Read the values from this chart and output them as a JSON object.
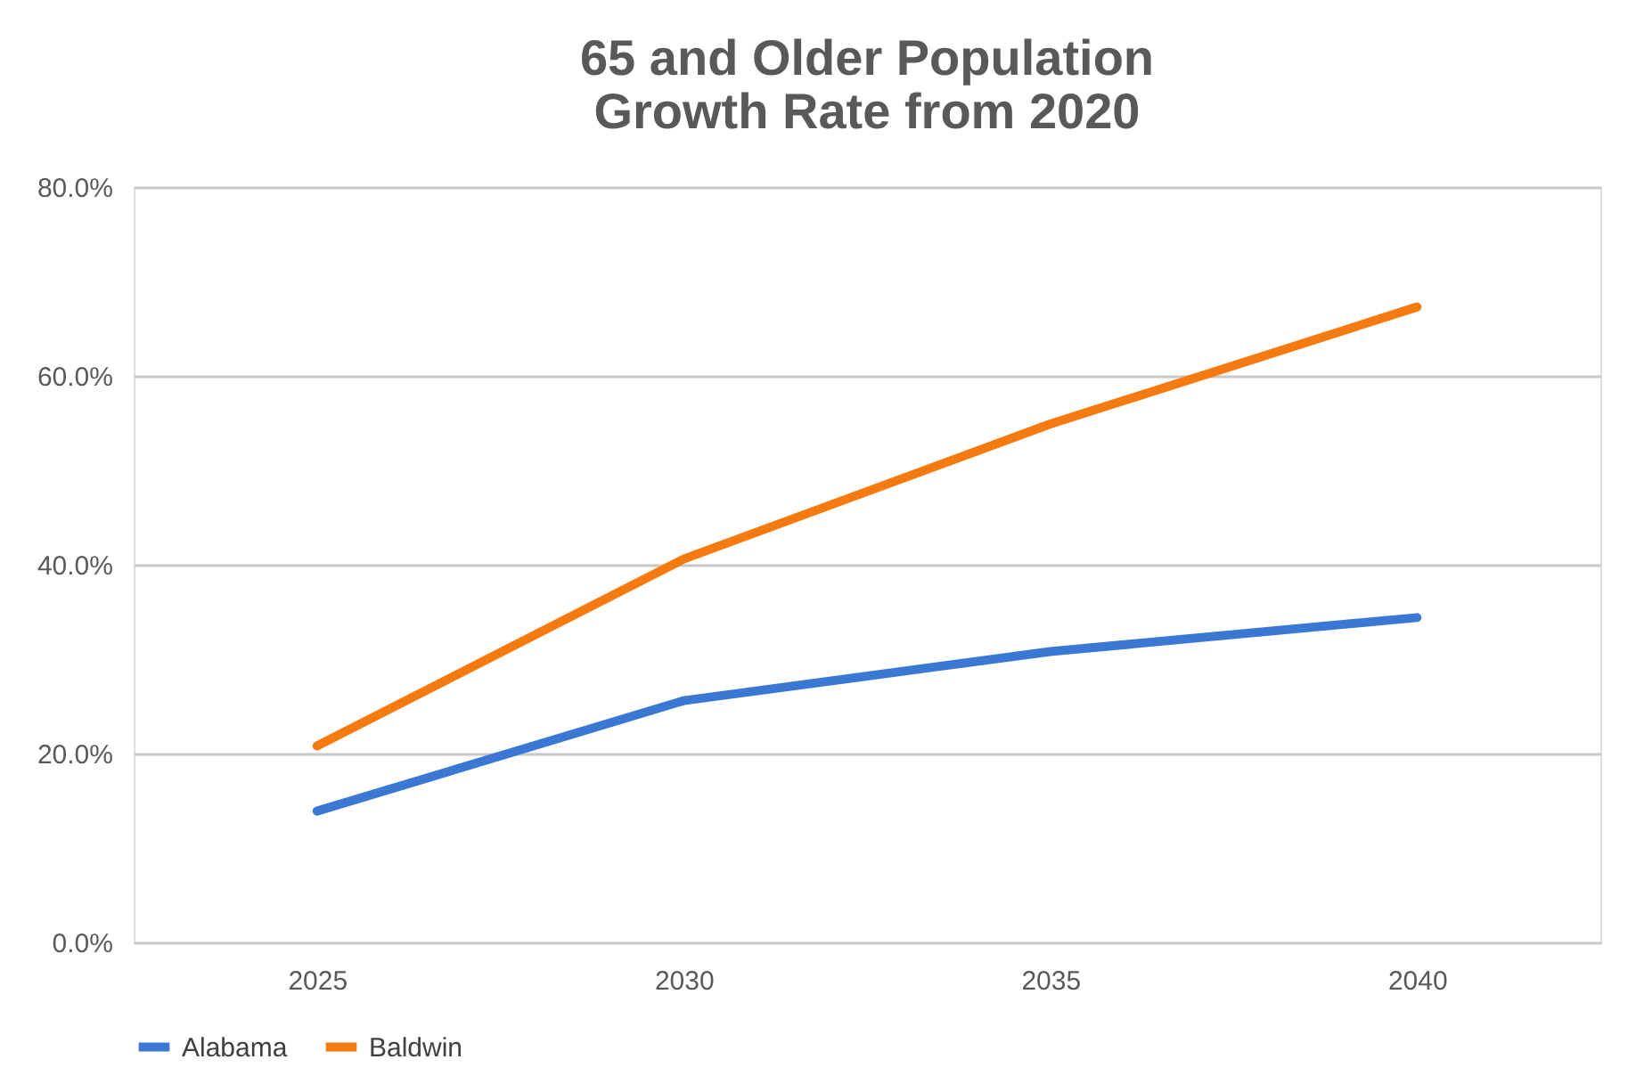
{
  "chart_data": {
    "type": "line",
    "title": [
      "65 and Older Population",
      "Growth Rate from 2020"
    ],
    "categories": [
      "2025",
      "2030",
      "2035",
      "2040"
    ],
    "series": [
      {
        "name": "Alabama",
        "color": "#3a78d4",
        "values": [
          13.9,
          25.6,
          30.8,
          34.4
        ]
      },
      {
        "name": "Baldwin",
        "color": "#f57a10",
        "values": [
          20.8,
          40.6,
          54.9,
          67.3
        ]
      }
    ],
    "ylim": [
      0,
      80
    ],
    "yticks": [
      {
        "value": 0,
        "label": "0.0%"
      },
      {
        "value": 20,
        "label": "20.0%"
      },
      {
        "value": 40,
        "label": "40.0%"
      },
      {
        "value": 60,
        "label": "60.0%"
      },
      {
        "value": 80,
        "label": "80.0%"
      }
    ],
    "grid": "y",
    "legend": "bottom",
    "marker": "none",
    "line_style": "solid"
  }
}
